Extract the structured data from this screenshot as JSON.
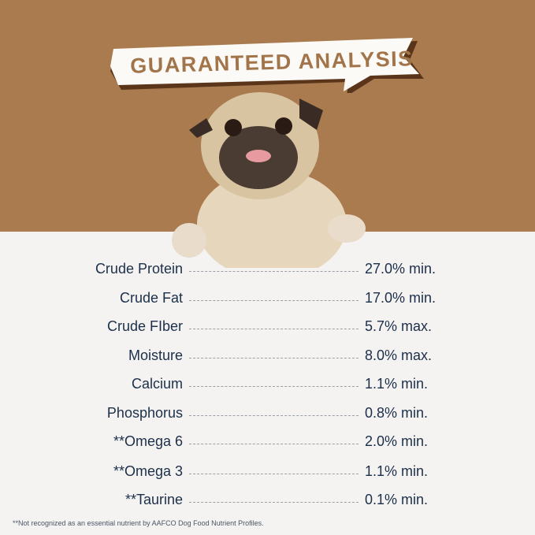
{
  "title": "GUARANTEED ANALYSIS",
  "colors": {
    "background_top": "#a97b4f",
    "paper": "#f4f3f1",
    "text": "#1c2f4a",
    "banner_text": "#a2744a"
  },
  "image": "pug-dog-peeking-over-edge",
  "rows": [
    {
      "label": "Crude Protein",
      "value": "27.0% min."
    },
    {
      "label": "Crude Fat",
      "value": "17.0% min."
    },
    {
      "label": "Crude FIber",
      "value": "5.7% max."
    },
    {
      "label": "Moisture",
      "value": "8.0% max."
    },
    {
      "label": "Calcium",
      "value": "1.1% min."
    },
    {
      "label": "Phosphorus",
      "value": "0.8% min."
    },
    {
      "label": "**Omega 6",
      "value": "2.0% min."
    },
    {
      "label": "**Omega 3",
      "value": "1.1% min."
    },
    {
      "label": "**Taurine",
      "value": "0.1% min."
    }
  ],
  "footnote": "**Not recognized as an essential nutrient by AAFCO Dog Food Nutrient Profiles."
}
